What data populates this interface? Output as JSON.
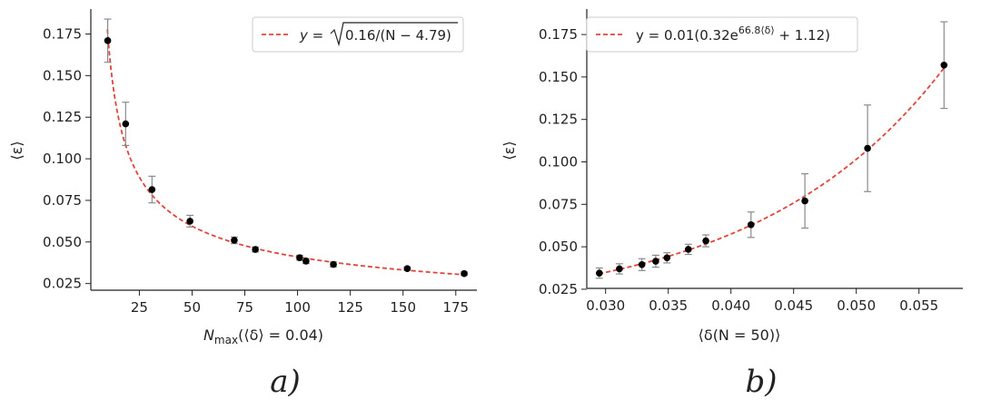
{
  "chart_data": [
    {
      "type": "scatter",
      "panel_label": "a)",
      "xlabel_main": "N",
      "xlabel_sub": "max",
      "xlabel_rest": "(⟨δ⟩ = 0.04)",
      "ylabel": "⟨ε⟩",
      "xlim": [
        2,
        185
      ],
      "ylim": [
        0.021,
        0.19
      ],
      "xticks": [
        25,
        50,
        75,
        100,
        125,
        150,
        175
      ],
      "yticks": [
        0.025,
        0.05,
        0.075,
        0.1,
        0.125,
        0.15,
        0.175
      ],
      "xtick_labels": [
        "25",
        "50",
        "75",
        "100",
        "125",
        "150",
        "175"
      ],
      "ytick_labels": [
        "0.025",
        "0.050",
        "0.075",
        "0.100",
        "0.125",
        "0.150",
        "0.175"
      ],
      "legend": {
        "position": "top-right",
        "label_prefix": "y = ",
        "label_sqrt": "0.16/(N − 4.79)"
      },
      "fit": {
        "a": 0.16,
        "b": 4.79,
        "line_color": "#e0453a"
      },
      "points": [
        {
          "x": 10,
          "y": 0.171,
          "err": 0.013
        },
        {
          "x": 18.5,
          "y": 0.121,
          "err": 0.013
        },
        {
          "x": 31,
          "y": 0.0815,
          "err": 0.008
        },
        {
          "x": 49,
          "y": 0.0625,
          "err": 0.0035
        },
        {
          "x": 70,
          "y": 0.051,
          "err": 0.002
        },
        {
          "x": 80,
          "y": 0.0455,
          "err": 0.0015
        },
        {
          "x": 101,
          "y": 0.0405,
          "err": 0.0015
        },
        {
          "x": 104,
          "y": 0.0385,
          "err": 0.0015
        },
        {
          "x": 117,
          "y": 0.0365,
          "err": 0.0015
        },
        {
          "x": 152,
          "y": 0.034,
          "err": 0.001
        },
        {
          "x": 179,
          "y": 0.031,
          "err": 0.001
        }
      ],
      "point_color": "#000000",
      "errorbar_color": "#8a8a8a"
    },
    {
      "type": "scatter",
      "panel_label": "b)",
      "xlabel": "⟨δ(N = 50)⟩",
      "ylabel": "⟨ε⟩",
      "xlim": [
        0.0285,
        0.0585
      ],
      "ylim": [
        0.0255,
        0.19
      ],
      "xticks": [
        0.03,
        0.035,
        0.04,
        0.045,
        0.05,
        0.055
      ],
      "yticks": [
        0.025,
        0.05,
        0.075,
        0.1,
        0.125,
        0.15,
        0.175
      ],
      "xtick_labels": [
        "0.030",
        "0.035",
        "0.040",
        "0.045",
        "0.050",
        "0.055"
      ],
      "ytick_labels": [
        "0.025",
        "0.050",
        "0.075",
        "0.100",
        "0.125",
        "0.150",
        "0.175"
      ],
      "legend": {
        "position": "top-left",
        "label_prefix": "y = 0.01(0.32e",
        "label_exp": "66.8⟨δ⟩",
        "label_suffix": " + 1.12)"
      },
      "fit": {
        "c": 0.01,
        "a": 0.32,
        "k": 66.8,
        "b": 1.12,
        "line_color": "#e0453a"
      },
      "points": [
        {
          "x": 0.0295,
          "y": 0.0345,
          "err": 0.003
        },
        {
          "x": 0.0311,
          "y": 0.037,
          "err": 0.003
        },
        {
          "x": 0.0329,
          "y": 0.0395,
          "err": 0.0035
        },
        {
          "x": 0.034,
          "y": 0.0415,
          "err": 0.0035
        },
        {
          "x": 0.0349,
          "y": 0.0435,
          "err": 0.003
        },
        {
          "x": 0.0366,
          "y": 0.0485,
          "err": 0.003
        },
        {
          "x": 0.038,
          "y": 0.0535,
          "err": 0.0035
        },
        {
          "x": 0.0416,
          "y": 0.063,
          "err": 0.0075
        },
        {
          "x": 0.0459,
          "y": 0.077,
          "err": 0.016
        },
        {
          "x": 0.0509,
          "y": 0.108,
          "err": 0.0255
        },
        {
          "x": 0.057,
          "y": 0.157,
          "err": 0.0255
        }
      ],
      "point_color": "#000000",
      "errorbar_color": "#8a8a8a"
    }
  ]
}
